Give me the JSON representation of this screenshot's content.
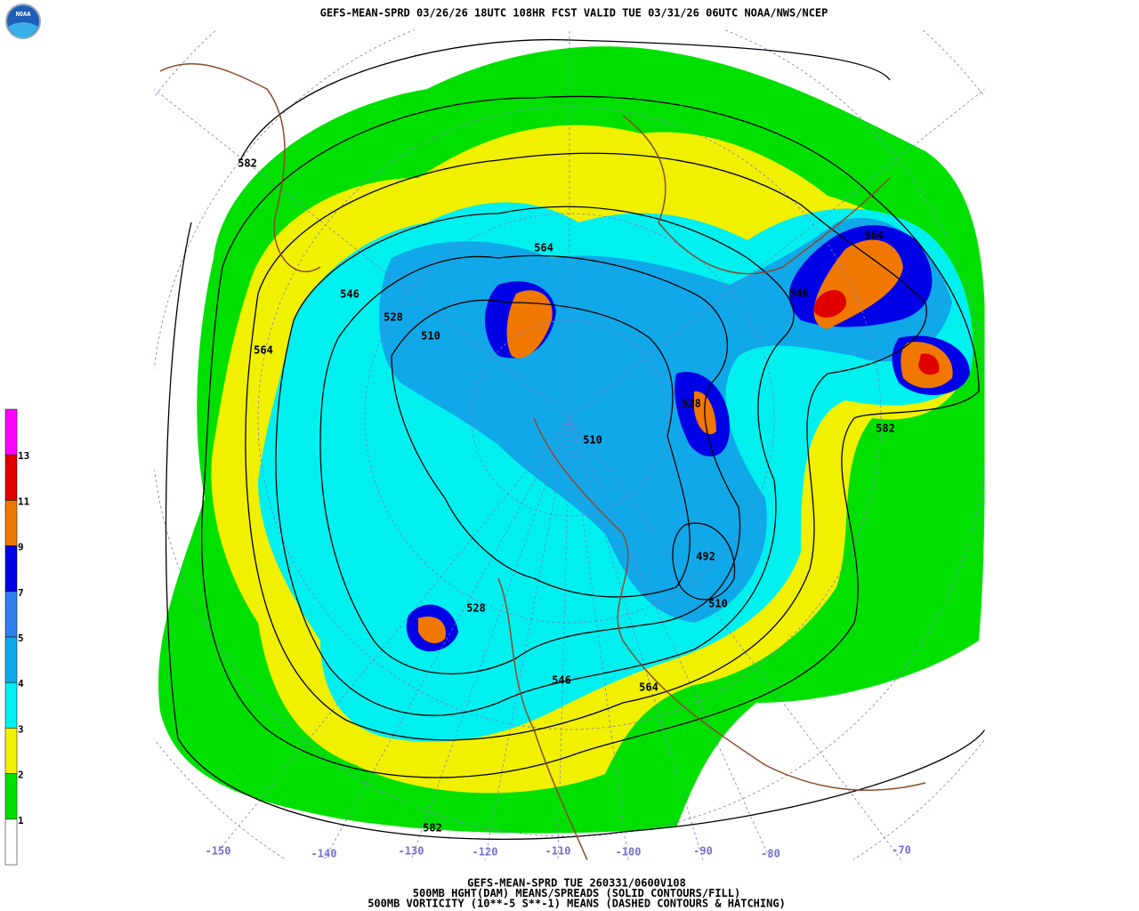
{
  "header": {
    "title": "GEFS-MEAN-SPRD 03/26/26 18UTC 108HR FCST VALID TUE 03/31/26 06UTC NOAA/NWS/NCEP",
    "logo_text": "NOAA"
  },
  "colorbar": {
    "labels": [
      13,
      11,
      9,
      7,
      5,
      4,
      3,
      2,
      1
    ],
    "colors": [
      "#ff00ff",
      "#e00000",
      "#f07800",
      "#0000e6",
      "#2f7ff0",
      "#10a8e8",
      "#00f0f0",
      "#f0f000",
      "#00e000",
      "#ffffff"
    ]
  },
  "map": {
    "longitude_labels": [
      -150,
      -140,
      -130,
      -120,
      -110,
      -100,
      -90,
      -80,
      -70
    ],
    "contour_labels": [
      582,
      564,
      546,
      528,
      510,
      564,
      564,
      546,
      528,
      510,
      582,
      492,
      510,
      528,
      546,
      564,
      582
    ]
  },
  "footer": {
    "lines": [
      "GEFS-MEAN-SPRD TUE 260331/0600V108",
      "500MB HGHT(DAM) MEANS/SPREADS (SOLID CONTOURS/FILL)",
      "500MB VORTICITY (10**-5 S**-1) MEANS (DASHED CONTOURS & HATCHING)"
    ]
  }
}
